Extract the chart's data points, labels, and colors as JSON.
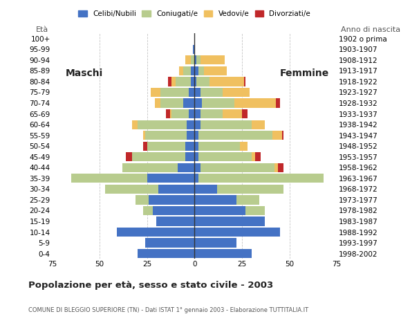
{
  "age_groups": [
    "0-4",
    "5-9",
    "10-14",
    "15-19",
    "20-24",
    "25-29",
    "30-34",
    "35-39",
    "40-44",
    "45-49",
    "50-54",
    "55-59",
    "60-64",
    "65-69",
    "70-74",
    "75-79",
    "80-84",
    "85-89",
    "90-94",
    "95-99",
    "100+"
  ],
  "birth_years": [
    "1998-2002",
    "1993-1997",
    "1988-1992",
    "1983-1987",
    "1978-1982",
    "1973-1977",
    "1968-1972",
    "1963-1967",
    "1958-1962",
    "1953-1957",
    "1948-1952",
    "1943-1947",
    "1938-1942",
    "1933-1937",
    "1928-1932",
    "1923-1927",
    "1918-1922",
    "1913-1917",
    "1908-1912",
    "1903-1907",
    "1902 o prima"
  ],
  "males": {
    "celibinubili": [
      30,
      26,
      41,
      20,
      22,
      24,
      19,
      25,
      9,
      5,
      5,
      4,
      4,
      3,
      6,
      3,
      2,
      2,
      0,
      1,
      0
    ],
    "coniugati": [
      0,
      0,
      0,
      0,
      5,
      7,
      28,
      40,
      29,
      28,
      20,
      22,
      26,
      9,
      12,
      15,
      8,
      4,
      2,
      0,
      0
    ],
    "vedovi": [
      0,
      0,
      0,
      0,
      0,
      0,
      0,
      0,
      0,
      0,
      0,
      1,
      3,
      1,
      3,
      5,
      2,
      2,
      3,
      0,
      0
    ],
    "divorziati": [
      0,
      0,
      0,
      0,
      0,
      0,
      0,
      0,
      0,
      3,
      2,
      0,
      0,
      2,
      0,
      0,
      2,
      0,
      0,
      0,
      0
    ]
  },
  "females": {
    "celibinubili": [
      30,
      22,
      45,
      37,
      27,
      22,
      12,
      2,
      3,
      2,
      2,
      2,
      3,
      3,
      4,
      3,
      1,
      2,
      1,
      0,
      0
    ],
    "coniugate": [
      0,
      0,
      0,
      0,
      10,
      12,
      35,
      66,
      39,
      28,
      22,
      39,
      27,
      12,
      17,
      12,
      7,
      3,
      2,
      0,
      0
    ],
    "vedove": [
      0,
      0,
      0,
      0,
      0,
      0,
      0,
      0,
      2,
      2,
      4,
      5,
      7,
      10,
      22,
      14,
      18,
      12,
      13,
      0,
      0
    ],
    "divorziate": [
      0,
      0,
      0,
      0,
      0,
      0,
      0,
      0,
      3,
      3,
      0,
      1,
      0,
      3,
      2,
      0,
      1,
      0,
      0,
      0,
      0
    ]
  },
  "colors": {
    "celibinubili": "#4472c4",
    "coniugati": "#b8cc8e",
    "vedovi": "#f0c060",
    "divorziati": "#c0282a"
  },
  "xlim": 75,
  "title": "Popolazione per età, sesso e stato civile - 2003",
  "subtitle": "COMUNE DI BLEGGIO SUPERIORE (TN) - Dati ISTAT 1° gennaio 2003 - Elaborazione TUTTITALIA.IT",
  "ylabel_left": "Età",
  "ylabel_right": "Anno di nascita",
  "label_maschi": "Maschi",
  "label_femmine": "Femmine",
  "legend_labels": [
    "Celibi/Nubili",
    "Coniugati/e",
    "Vedovi/e",
    "Divorziati/e"
  ],
  "background_color": "#ffffff",
  "grid_color": "#aaaaaa"
}
